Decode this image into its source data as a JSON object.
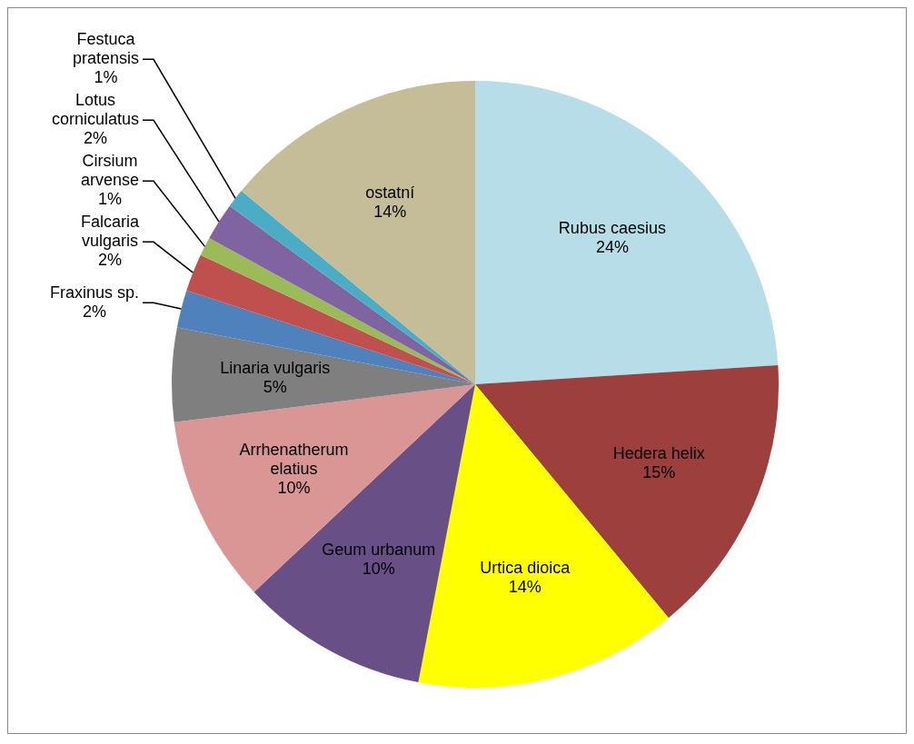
{
  "chart_data": {
    "type": "pie",
    "categories": [
      "Rubus caesius",
      "Hedera helix",
      "Urtica dioica",
      "Geum urbanum",
      "Arrhenatherum elatius",
      "Linaria vulgaris",
      "Fraxinus sp.",
      "Falcaria vulgaris",
      "Cirsium arvense",
      "Lotus corniculatus",
      "Festuca pratensis",
      "ostatní"
    ],
    "values": [
      24,
      15,
      14,
      10,
      10,
      5,
      2,
      2,
      1,
      2,
      1,
      14
    ],
    "value_labels": [
      "24%",
      "15%",
      "14%",
      "10%",
      "10%",
      "5%",
      "2%",
      "2%",
      "1%",
      "2%",
      "1%",
      "14%"
    ],
    "colors": [
      "#b7dde8",
      "#9c3f3d",
      "#ffff00",
      "#684f86",
      "#d99694",
      "#7f7f7f",
      "#4f81bd",
      "#c0504d",
      "#9bbb59",
      "#8064a2",
      "#4bacc6",
      "#c4bd97"
    ],
    "legend": false
  }
}
